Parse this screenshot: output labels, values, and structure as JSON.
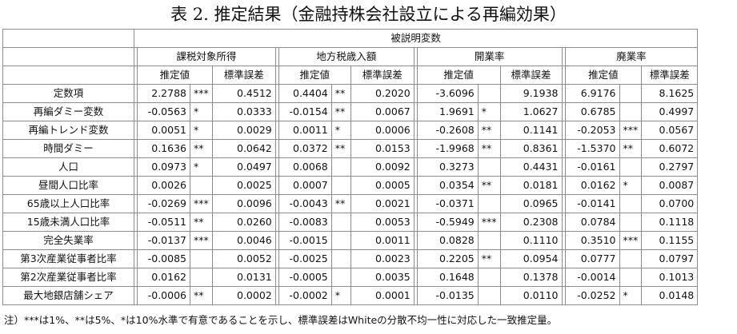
{
  "title": "表 2.  推定結果（金融持株会社設立による再編効果）",
  "dependent_header": "被説明変数",
  "groups": [
    "課税対象所得",
    "地方税歳入額",
    "開業率",
    "廃業率"
  ],
  "col_est": "推定値",
  "col_se": "標準誤差",
  "rows": [
    {
      "name": "定数項",
      "vals": [
        [
          "2.2788",
          "***",
          "0.4512"
        ],
        [
          "0.4404",
          "**",
          "0.2020"
        ],
        [
          "-3.6096",
          "",
          "9.1938"
        ],
        [
          "6.9176",
          "",
          "8.1625"
        ]
      ]
    },
    {
      "name": "再編ダミー変数",
      "vals": [
        [
          "-0.0563",
          "*",
          "0.0333"
        ],
        [
          "-0.0154",
          "**",
          "0.0067"
        ],
        [
          "1.9691",
          "*",
          "1.0627"
        ],
        [
          "0.6785",
          "",
          "0.4997"
        ]
      ]
    },
    {
      "name": "再編トレンド変数",
      "vals": [
        [
          "0.0051",
          "*",
          "0.0029"
        ],
        [
          "0.0011",
          "*",
          "0.0006"
        ],
        [
          "-0.2608",
          "**",
          "0.1141"
        ],
        [
          "-0.2053",
          "***",
          "0.0567"
        ]
      ]
    },
    {
      "name": "時間ダミー",
      "vals": [
        [
          "0.1636",
          "**",
          "0.0642"
        ],
        [
          "0.0372",
          "**",
          "0.0153"
        ],
        [
          "-1.9968",
          "**",
          "0.8361"
        ],
        [
          "-1.5370",
          "**",
          "0.6072"
        ]
      ]
    },
    {
      "name": "人口",
      "vals": [
        [
          "0.0973",
          "*",
          "0.0497"
        ],
        [
          "0.0068",
          "",
          "0.0092"
        ],
        [
          "0.3273",
          "",
          "0.4431"
        ],
        [
          "-0.0161",
          "",
          "0.2797"
        ]
      ]
    },
    {
      "name": "昼間人口比率",
      "vals": [
        [
          "0.0026",
          "",
          "0.0025"
        ],
        [
          "0.0007",
          "",
          "0.0005"
        ],
        [
          "0.0354",
          "**",
          "0.0181"
        ],
        [
          "0.0162",
          "*",
          "0.0087"
        ]
      ]
    },
    {
      "name": "65歳以上人口比率",
      "vals": [
        [
          "-0.0269",
          "***",
          "0.0096"
        ],
        [
          "-0.0043",
          "**",
          "0.0021"
        ],
        [
          "-0.0371",
          "",
          "0.0965"
        ],
        [
          "-0.0141",
          "",
          "0.0700"
        ]
      ]
    },
    {
      "name": "15歳未満人口比率",
      "vals": [
        [
          "-0.0511",
          "**",
          "0.0260"
        ],
        [
          "-0.0083",
          "",
          "0.0053"
        ],
        [
          "-0.5949",
          "***",
          "0.2308"
        ],
        [
          "0.0784",
          "",
          "0.1118"
        ]
      ]
    },
    {
      "name": "完全失業率",
      "vals": [
        [
          "-0.0137",
          "***",
          "0.0046"
        ],
        [
          "-0.0015",
          "",
          "0.0011"
        ],
        [
          "0.0828",
          "",
          "0.1110"
        ],
        [
          "0.3510",
          "***",
          "0.1155"
        ]
      ]
    },
    {
      "name": "第3次産業従事者比率",
      "vals": [
        [
          "-0.0085",
          "",
          "0.0052"
        ],
        [
          "-0.0025",
          "",
          "0.0023"
        ],
        [
          "0.2205",
          "**",
          "0.0954"
        ],
        [
          "0.0777",
          "",
          "0.0797"
        ]
      ]
    },
    {
      "name": "第2次産業従事者比率",
      "vals": [
        [
          "0.0162",
          "",
          "0.0131"
        ],
        [
          "-0.0005",
          "",
          "0.0035"
        ],
        [
          "0.1648",
          "",
          "0.1378"
        ],
        [
          "-0.0014",
          "",
          "0.1013"
        ]
      ]
    },
    {
      "name": "最大地銀店舗シェア",
      "vals": [
        [
          "-0.0006",
          "**",
          "0.0002"
        ],
        [
          "-0.0002",
          "*",
          "0.0001"
        ],
        [
          "-0.0135",
          "",
          "0.0110"
        ],
        [
          "-0.0252",
          "*",
          "0.0148"
        ]
      ]
    }
  ],
  "note": "注）***は1%、**は5%、*は10%水準で有意であることを示し、標準誤差はWhiteの分散不均一性に対応した一致推定量。"
}
